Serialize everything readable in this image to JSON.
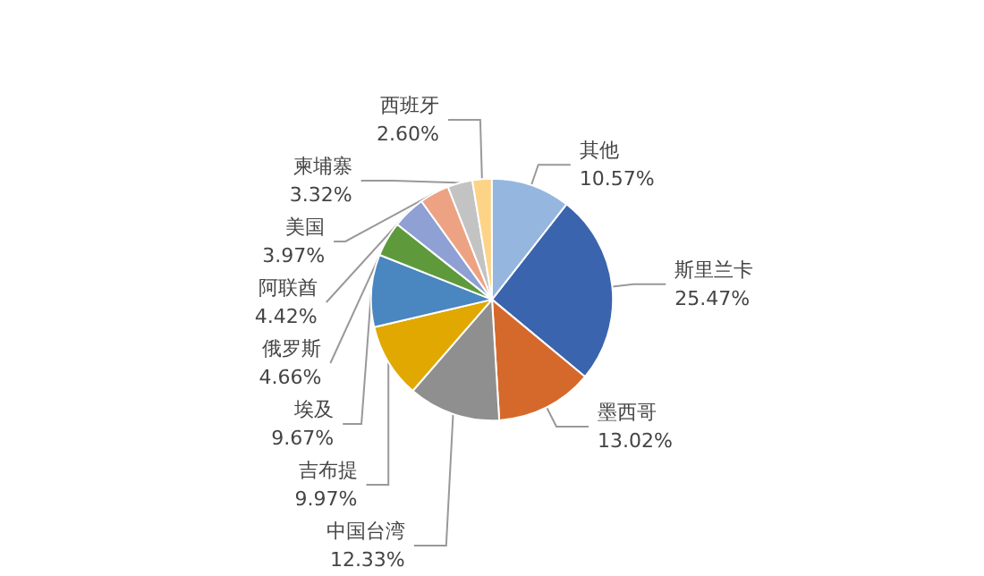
{
  "chart_data": {
    "type": "pie",
    "categories": [
      "斯里兰卡",
      "墨西哥",
      "中国台湾",
      "吉布提",
      "埃及",
      "俄罗斯",
      "阿联酋",
      "美国",
      "柬埔寨",
      "西班牙",
      "其他"
    ],
    "values": [
      25.47,
      13.02,
      12.33,
      9.97,
      9.67,
      4.66,
      4.42,
      3.97,
      3.32,
      2.6,
      10.57
    ],
    "value_labels": [
      "25.47%",
      "13.02%",
      "12.33%",
      "9.97%",
      "9.67%",
      "4.66%",
      "4.42%",
      "3.97%",
      "3.32%",
      "2.60%",
      "10.57%"
    ],
    "colors": [
      "#3a64ad",
      "#d5692b",
      "#8f8f8f",
      "#e0a800",
      "#4a86c0",
      "#5e9a3c",
      "#8ea0d4",
      "#eda383",
      "#c3c3c3",
      "#fdd387",
      "#95b6de"
    ],
    "legend": false
  }
}
